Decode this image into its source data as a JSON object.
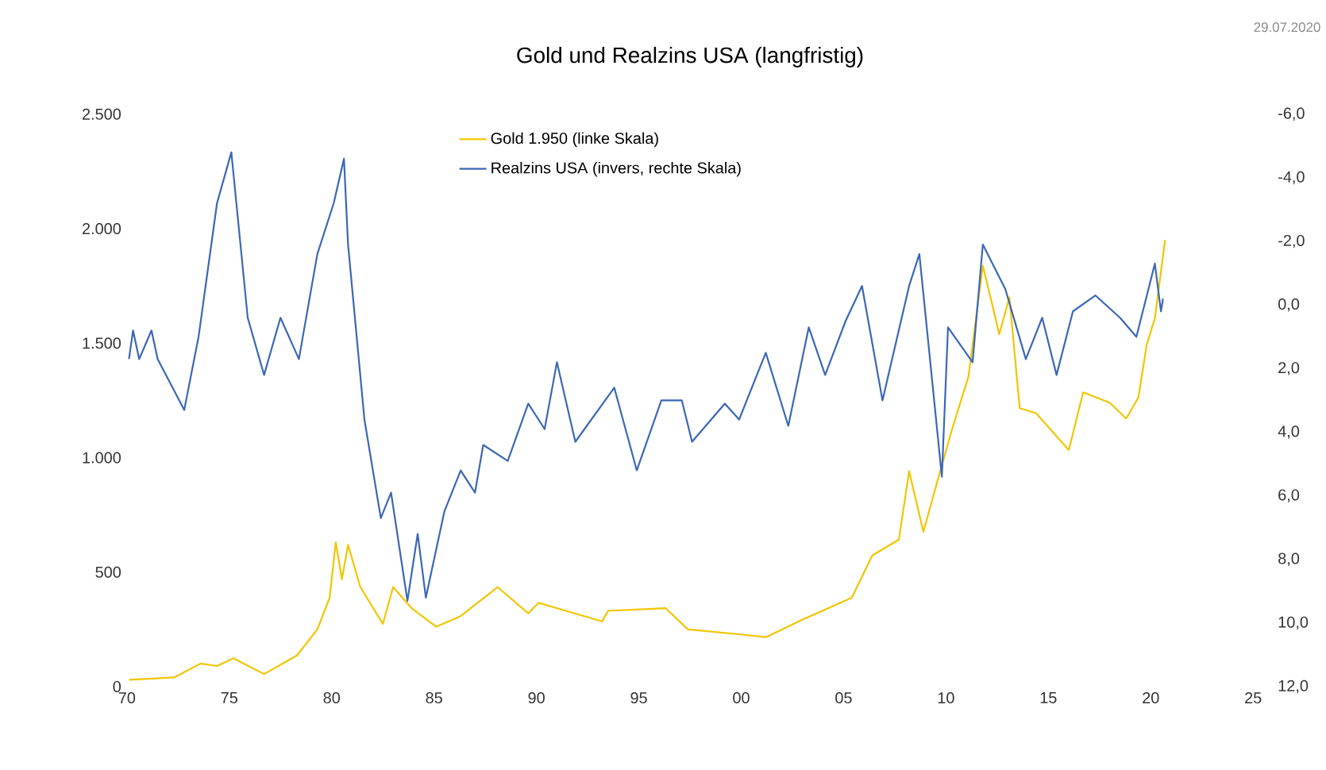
{
  "chart_data": {
    "type": "line",
    "title": "Gold und Realzins USA (langfristig)",
    "annotations": [
      "29.07.2020"
    ],
    "xlim": [
      1970,
      2025
    ],
    "xticks": [
      {
        "value": 1970,
        "label": "70"
      },
      {
        "value": 1975,
        "label": "75"
      },
      {
        "value": 1980,
        "label": "80"
      },
      {
        "value": 1985,
        "label": "85"
      },
      {
        "value": 1990,
        "label": "90"
      },
      {
        "value": 1995,
        "label": "95"
      },
      {
        "value": 2000,
        "label": "00"
      },
      {
        "value": 2005,
        "label": "05"
      },
      {
        "value": 2010,
        "label": "10"
      },
      {
        "value": 2015,
        "label": "15"
      },
      {
        "value": 2020,
        "label": "20"
      },
      {
        "value": 2025,
        "label": "25"
      }
    ],
    "ylim": [
      0,
      2500
    ],
    "yticks": [
      {
        "value": 0,
        "label": "0"
      },
      {
        "value": 500,
        "label": "500"
      },
      {
        "value": 1000,
        "label": "1.000"
      },
      {
        "value": 1500,
        "label": "1.500"
      },
      {
        "value": 2000,
        "label": "2.000"
      },
      {
        "value": 2500,
        "label": "2.500"
      }
    ],
    "y2lim": [
      12,
      -6
    ],
    "y2ticks": [
      {
        "value": -6,
        "label": "-6,0"
      },
      {
        "value": -4,
        "label": "-4,0"
      },
      {
        "value": -2,
        "label": "-2,0"
      },
      {
        "value": 0,
        "label": "0,0"
      },
      {
        "value": 2,
        "label": "2,0"
      },
      {
        "value": 4,
        "label": "4,0"
      },
      {
        "value": 6,
        "label": "6,0"
      },
      {
        "value": 8,
        "label": "8,0"
      },
      {
        "value": 10,
        "label": "10,0"
      },
      {
        "value": 12,
        "label": "12,0"
      }
    ],
    "legend": "top",
    "grid": false,
    "series": [
      {
        "name": "Gold 1.950 (linke Skala)",
        "color": "#f2c500",
        "x": [
          1970.1,
          1972.3,
          1973.6,
          1974.4,
          1975.2,
          1976.7,
          1978.3,
          1979.3,
          1979.9,
          1980.2,
          1980.5,
          1980.8,
          1981.4,
          1982.5,
          1983.0,
          1983.9,
          1985.1,
          1986.3,
          1988.1,
          1989.6,
          1990.1,
          1993.2,
          1993.5,
          1996.3,
          1997.4,
          2000.0,
          2001.2,
          2003.1,
          2005.4,
          2006.4,
          2007.7,
          2008.2,
          2008.9,
          2009.5,
          2010.3,
          2011.1,
          2011.8,
          2012.3,
          2012.6,
          2013.1,
          2013.6,
          2014.4,
          2016.0,
          2016.7,
          2018.0,
          2018.8,
          2019.4,
          2019.8,
          2020.2,
          2020.7
        ],
        "values": [
          30,
          40,
          101,
          90,
          124,
          55,
          136,
          250,
          388,
          630,
          469,
          619,
          435,
          274,
          435,
          343,
          262,
          308,
          435,
          320,
          366,
          285,
          331,
          343,
          250,
          228,
          216,
          297,
          388,
          573,
          642,
          941,
          676,
          871,
          1125,
          1354,
          1838,
          1654,
          1539,
          1700,
          1216,
          1194,
          1033,
          1285,
          1240,
          1171,
          1263,
          1492,
          1608,
          1950
        ]
      },
      {
        "name": "Realzins USA (invers, rechte Skala)",
        "color": "#3a67b8",
        "axis": "y2",
        "x": [
          1970.1,
          1970.3,
          1970.6,
          1971.2,
          1971.5,
          1972.8,
          1973.5,
          1974.4,
          1975.1,
          1975.9,
          1976.7,
          1977.5,
          1978.4,
          1979.3,
          1980.1,
          1980.6,
          1980.8,
          1981.6,
          1982.4,
          1982.9,
          1983.7,
          1984.2,
          1984.6,
          1985.5,
          1986.3,
          1987.0,
          1987.4,
          1988.6,
          1989.6,
          1990.4,
          1991.0,
          1991.9,
          1993.8,
          1994.9,
          1996.1,
          1997.1,
          1997.6,
          1999.2,
          1999.9,
          2001.2,
          2002.3,
          2003.3,
          2004.1,
          2005.1,
          2005.9,
          2006.9,
          2008.2,
          2008.7,
          2009.8,
          2010.1,
          2011.3,
          2011.8,
          2012.9,
          2013.9,
          2014.7,
          2015.4,
          2016.2,
          2017.3,
          2018.5,
          2019.3,
          2020.2,
          2020.5,
          2020.6
        ],
        "values": [
          1.7,
          0.8,
          1.7,
          0.8,
          1.7,
          3.3,
          1.0,
          -3.2,
          -4.8,
          0.4,
          2.2,
          0.4,
          1.7,
          -1.6,
          -3.2,
          -4.6,
          -1.9,
          3.6,
          6.7,
          5.9,
          9.3,
          7.2,
          9.2,
          6.5,
          5.2,
          5.9,
          4.4,
          4.9,
          3.1,
          3.9,
          1.8,
          4.3,
          2.6,
          5.2,
          3.0,
          3.0,
          4.3,
          3.1,
          3.6,
          1.5,
          3.8,
          0.7,
          2.2,
          0.5,
          -0.6,
          3.0,
          -0.6,
          -1.6,
          5.4,
          0.7,
          1.8,
          -1.9,
          -0.5,
          1.7,
          0.4,
          2.2,
          0.2,
          -0.3,
          0.4,
          1.0,
          -1.3,
          0.2,
          -0.2
        ]
      }
    ]
  }
}
